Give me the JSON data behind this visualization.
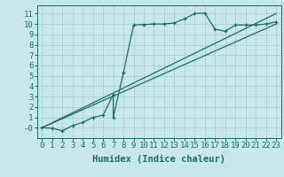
{
  "xlabel": "Humidex (Indice chaleur)",
  "bg_color": "#c8e8e8",
  "grid_color": "#a8cccc",
  "line_color": "#1a6e60",
  "xlim": [
    -0.5,
    23.5
  ],
  "ylim": [
    -1.0,
    11.8
  ],
  "xticks": [
    0,
    1,
    2,
    3,
    4,
    5,
    6,
    7,
    8,
    9,
    10,
    11,
    12,
    13,
    14,
    15,
    16,
    17,
    18,
    19,
    20,
    21,
    22,
    23
  ],
  "yticks": [
    0,
    1,
    2,
    3,
    4,
    5,
    6,
    7,
    8,
    9,
    10,
    11
  ],
  "ytick_labels": [
    "-0",
    "1",
    "2",
    "3",
    "4",
    "5",
    "6",
    "7",
    "8",
    "9",
    "10",
    "11"
  ],
  "series1_x": [
    0,
    1,
    2,
    3,
    4,
    5,
    6,
    7,
    7,
    8,
    9,
    10,
    11,
    12,
    13,
    14,
    15,
    16,
    17,
    18,
    19,
    20,
    21,
    22,
    23
  ],
  "series1_y": [
    0,
    -0.05,
    -0.3,
    0.2,
    0.5,
    1.0,
    1.2,
    3.2,
    1.0,
    5.3,
    9.9,
    9.95,
    10.0,
    10.0,
    10.1,
    10.5,
    11.0,
    11.05,
    9.5,
    9.3,
    9.9,
    9.9,
    9.9,
    10.0,
    10.2
  ],
  "series2_x": [
    0,
    23
  ],
  "series2_y": [
    0,
    10.0
  ],
  "series3_x": [
    0,
    23
  ],
  "series3_y": [
    0,
    11.0
  ],
  "font_size": 6.5,
  "xlabel_fontsize": 7.5,
  "lw": 0.9,
  "marker_size": 3.5,
  "marker_lw": 0.9
}
